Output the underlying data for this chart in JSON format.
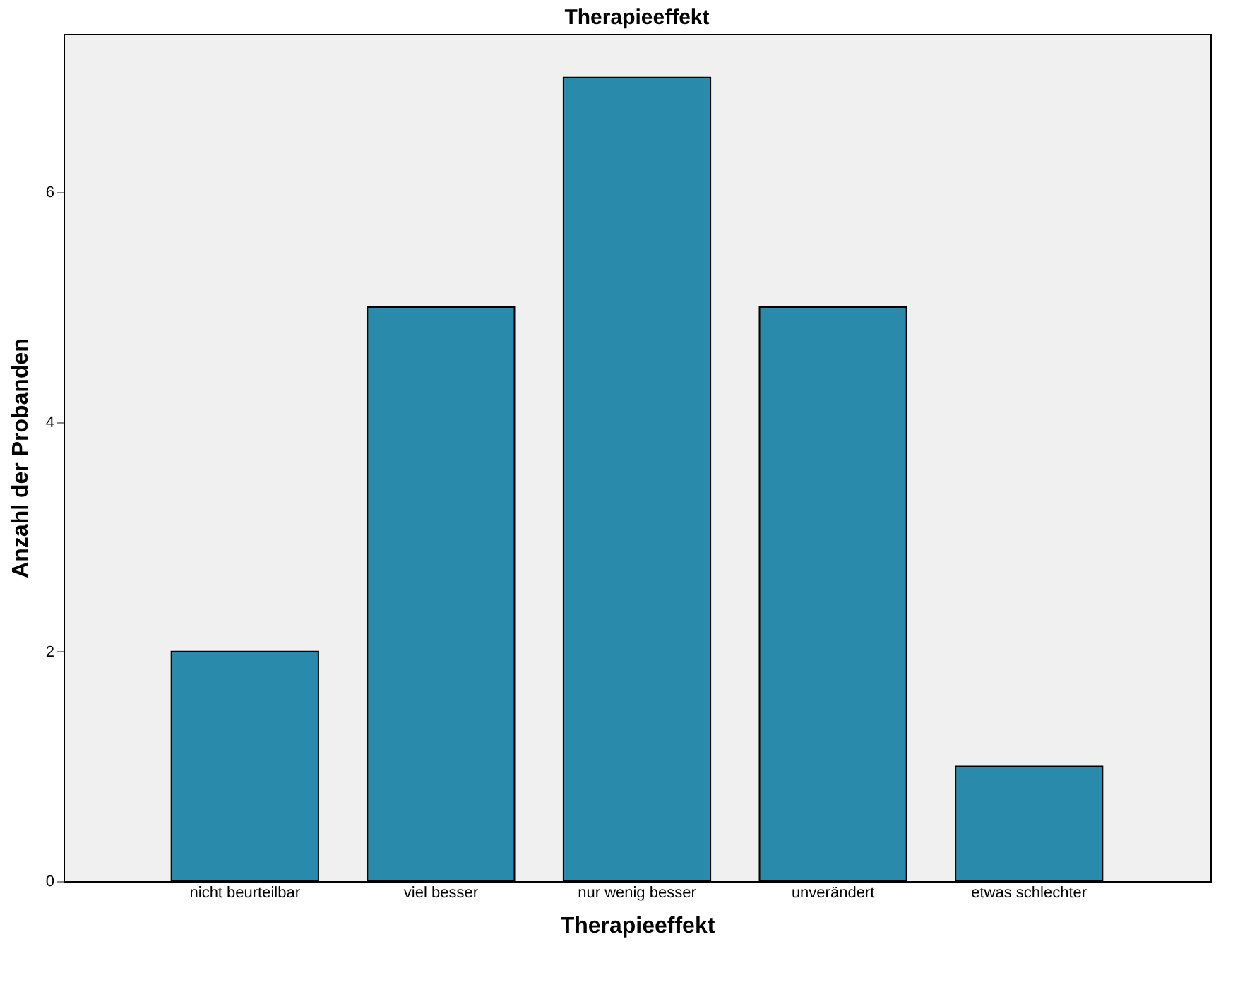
{
  "chart_data": {
    "type": "bar",
    "title": "Therapieeffekt",
    "xlabel": "Therapieeffekt",
    "ylabel": "Anzahl der Probanden",
    "categories": [
      "nicht beurteilbar",
      "viel besser",
      "nur wenig besser",
      "unverändert",
      "etwas schlechter"
    ],
    "values": [
      2,
      5,
      7,
      5,
      1
    ],
    "color": "#2a8aab",
    "ylim": [
      0,
      7.38
    ],
    "yticks": [
      0,
      2,
      4,
      6
    ],
    "grid": false
  }
}
